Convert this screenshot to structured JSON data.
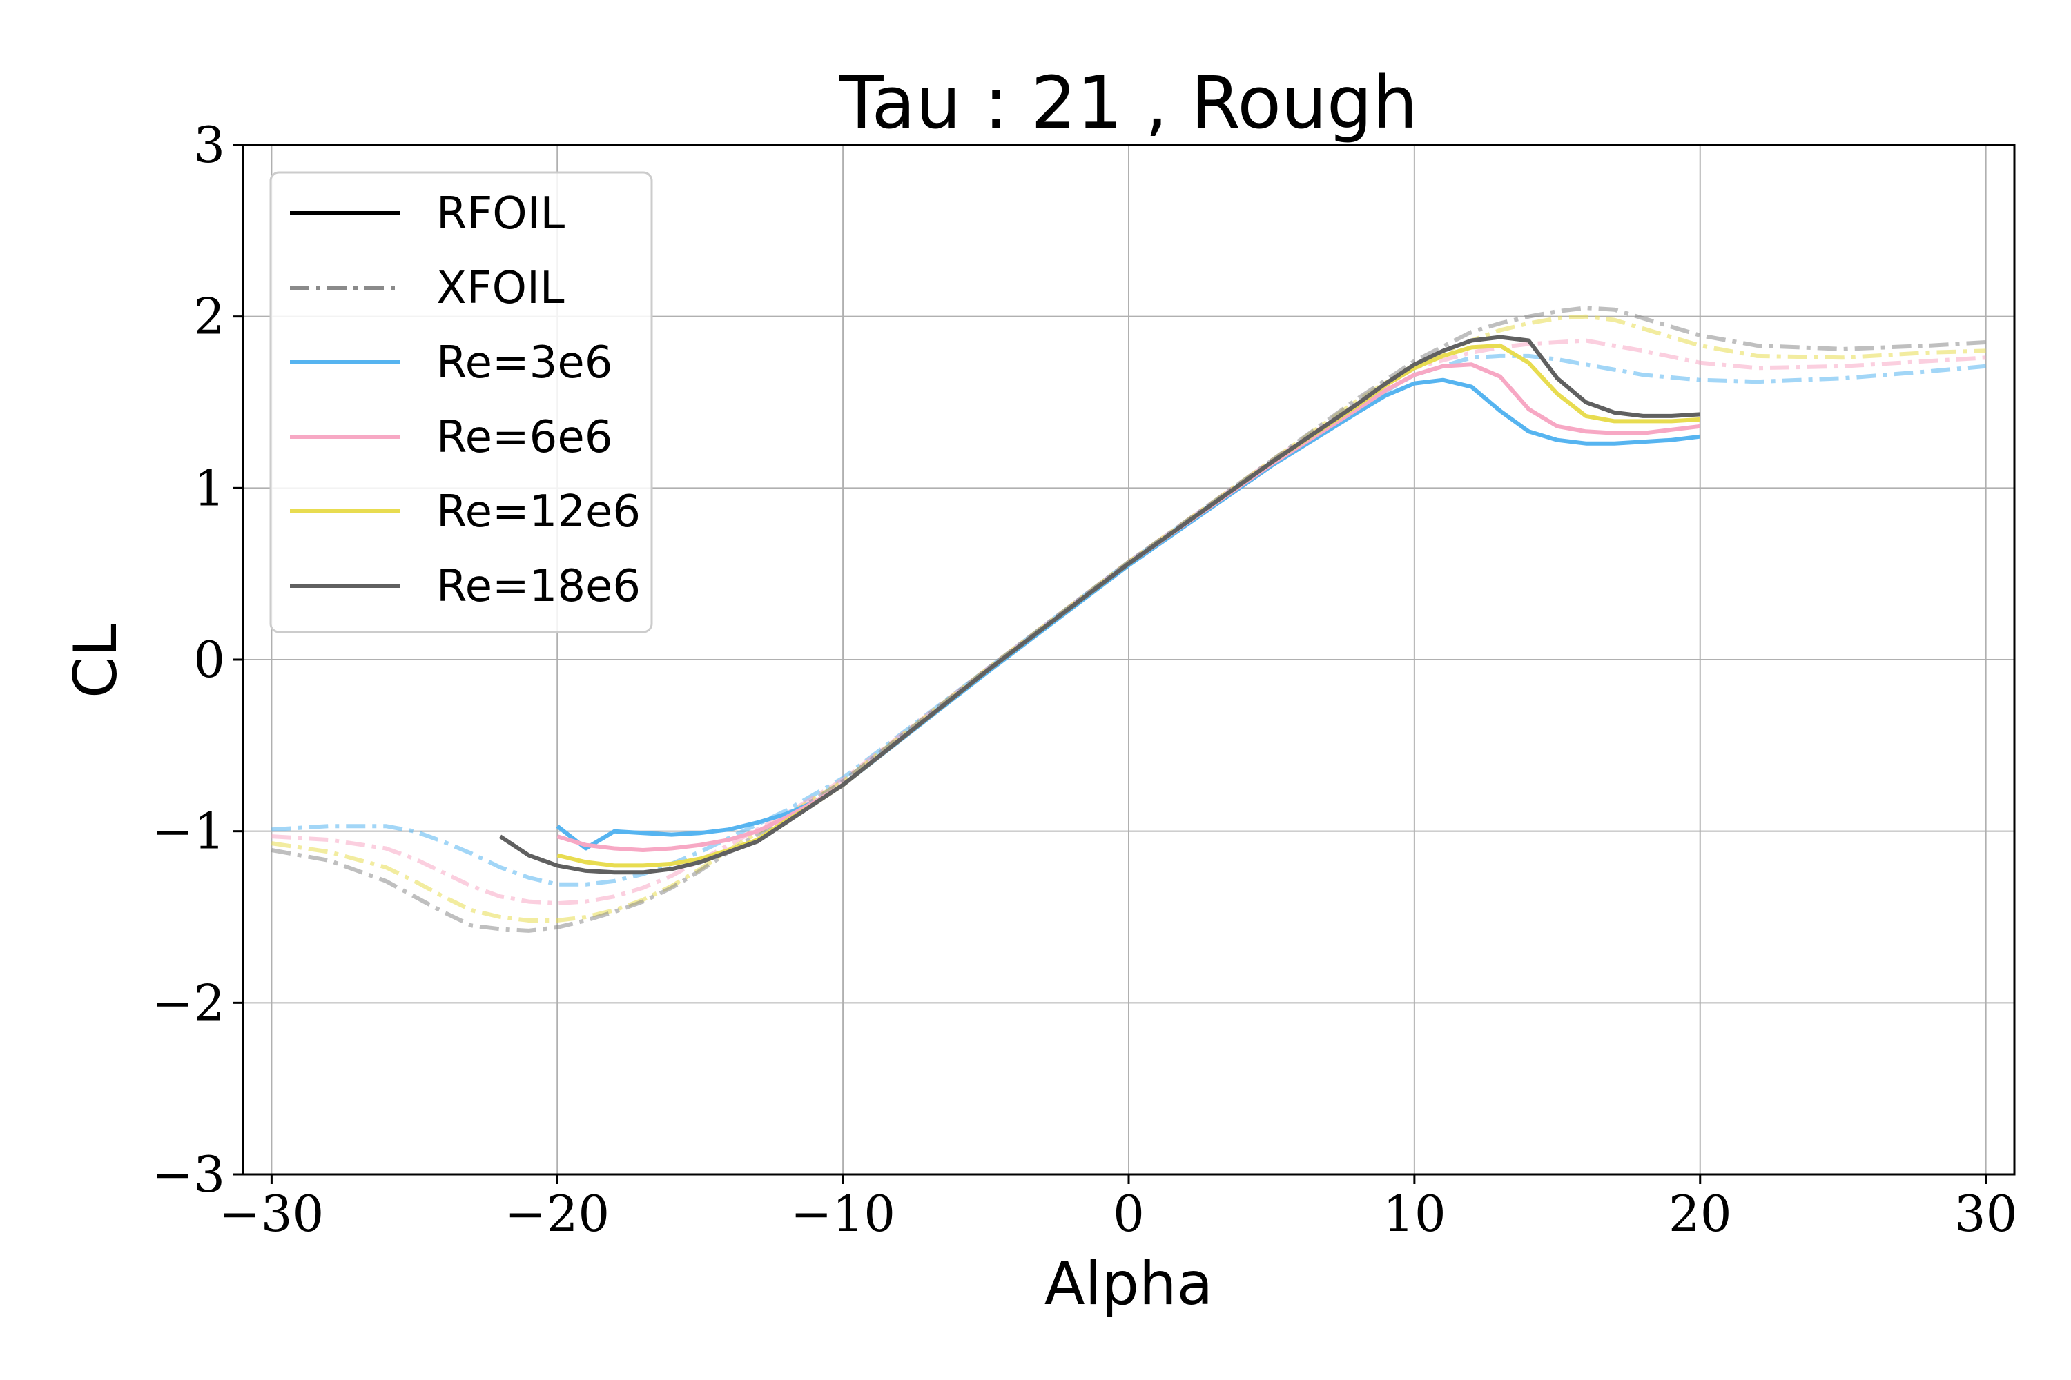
{
  "chart_data": {
    "type": "line",
    "title": "Tau : 21 , Rough",
    "xlabel": "Alpha",
    "ylabel": "CL",
    "xlim": [
      -31,
      31
    ],
    "ylim": [
      -3,
      3
    ],
    "xticks": [
      -30,
      -20,
      -10,
      0,
      10,
      20,
      30
    ],
    "yticks": [
      -3,
      -2,
      -1,
      0,
      1,
      2,
      3
    ],
    "xtick_labels": [
      "−30",
      "−20",
      "−10",
      "0",
      "10",
      "20",
      "30"
    ],
    "ytick_labels": [
      "−3",
      "−2",
      "−1",
      "0",
      "1",
      "2",
      "3"
    ],
    "grid": true,
    "legend_position": "top-left",
    "legend": [
      {
        "label": "RFOIL",
        "style": "solid",
        "color": "#000000"
      },
      {
        "label": "XFOIL",
        "style": "dashdot",
        "color": "#8a8a8a"
      },
      {
        "label": "Re=3e6",
        "style": "solid",
        "color": "#56b4f0"
      },
      {
        "label": "Re=6e6",
        "style": "solid",
        "color": "#f7a8c4"
      },
      {
        "label": "Re=12e6",
        "style": "solid",
        "color": "#e8dc50"
      },
      {
        "label": "Re=18e6",
        "style": "solid",
        "color": "#606060"
      }
    ],
    "series": [
      {
        "name": "Re=3e6",
        "solver": "XFOIL",
        "color": "#56b4f0",
        "style": "dashdot",
        "x": [
          -30,
          -28,
          -26,
          -25,
          -24,
          -23,
          -22,
          -21,
          -20,
          -19,
          -18,
          -17,
          -16,
          -15,
          -14,
          -13,
          -12,
          -10,
          -5,
          0,
          5,
          8,
          10,
          12,
          13,
          14,
          15,
          16,
          18,
          20,
          22,
          25,
          28,
          30
        ],
        "y": [
          -0.99,
          -0.97,
          -0.97,
          -1.0,
          -1.06,
          -1.13,
          -1.21,
          -1.27,
          -1.31,
          -1.31,
          -1.29,
          -1.25,
          -1.19,
          -1.12,
          -1.04,
          -0.96,
          -0.88,
          -0.69,
          -0.06,
          0.57,
          1.15,
          1.47,
          1.66,
          1.76,
          1.77,
          1.77,
          1.75,
          1.72,
          1.66,
          1.63,
          1.62,
          1.64,
          1.68,
          1.71
        ]
      },
      {
        "name": "Re=6e6",
        "solver": "XFOIL",
        "color": "#f7a8c4",
        "style": "dashdot",
        "x": [
          -30,
          -28,
          -26,
          -25,
          -24,
          -23,
          -22,
          -21,
          -20,
          -19,
          -18,
          -17,
          -16,
          -15,
          -14,
          -13,
          -12,
          -10,
          -5,
          0,
          5,
          8,
          10,
          12,
          13,
          14,
          15,
          16,
          18,
          20,
          22,
          25,
          28,
          30
        ],
        "y": [
          -1.03,
          -1.05,
          -1.1,
          -1.16,
          -1.24,
          -1.32,
          -1.38,
          -1.41,
          -1.42,
          -1.41,
          -1.38,
          -1.33,
          -1.26,
          -1.17,
          -1.08,
          -0.99,
          -0.9,
          -0.7,
          -0.06,
          0.57,
          1.16,
          1.49,
          1.7,
          1.79,
          1.82,
          1.84,
          1.85,
          1.86,
          1.8,
          1.73,
          1.7,
          1.71,
          1.74,
          1.76
        ]
      },
      {
        "name": "Re=12e6",
        "solver": "XFOIL",
        "color": "#e8dc50",
        "style": "dashdot",
        "x": [
          -30,
          -28,
          -26,
          -25,
          -24,
          -23,
          -22,
          -21,
          -20,
          -19,
          -18,
          -17,
          -16,
          -15,
          -14,
          -13,
          -12,
          -10,
          -5,
          0,
          5,
          8,
          10,
          12,
          13,
          14,
          15,
          16,
          17,
          18,
          20,
          22,
          25,
          28,
          30
        ],
        "y": [
          -1.07,
          -1.12,
          -1.21,
          -1.29,
          -1.38,
          -1.46,
          -1.5,
          -1.52,
          -1.52,
          -1.5,
          -1.46,
          -1.4,
          -1.32,
          -1.22,
          -1.11,
          -1.01,
          -0.91,
          -0.71,
          -0.06,
          0.57,
          1.16,
          1.51,
          1.72,
          1.86,
          1.92,
          1.96,
          1.99,
          2.0,
          1.98,
          1.93,
          1.83,
          1.77,
          1.76,
          1.79,
          1.8
        ]
      },
      {
        "name": "Re=18e6",
        "solver": "XFOIL",
        "color": "#8a8a8a",
        "style": "dashdot",
        "x": [
          -30,
          -28,
          -26,
          -25,
          -24,
          -23,
          -22,
          -21,
          -20,
          -19,
          -18,
          -17,
          -16,
          -15,
          -14,
          -13,
          -12,
          -10,
          -5,
          0,
          5,
          8,
          10,
          12,
          13,
          14,
          15,
          16,
          17,
          18,
          20,
          22,
          25,
          28,
          30
        ],
        "y": [
          -1.11,
          -1.17,
          -1.29,
          -1.38,
          -1.47,
          -1.55,
          -1.57,
          -1.58,
          -1.56,
          -1.52,
          -1.47,
          -1.41,
          -1.33,
          -1.23,
          -1.12,
          -1.02,
          -0.92,
          -0.71,
          -0.06,
          0.57,
          1.16,
          1.52,
          1.74,
          1.91,
          1.96,
          2.0,
          2.03,
          2.05,
          2.04,
          1.99,
          1.89,
          1.83,
          1.81,
          1.83,
          1.85
        ]
      },
      {
        "name": "Re=3e6",
        "solver": "RFOIL",
        "color": "#56b4f0",
        "style": "solid",
        "x": [
          -20,
          -19,
          -18,
          -17,
          -16,
          -15,
          -14,
          -13,
          -12,
          -11,
          -10,
          -5,
          0,
          5,
          8,
          9,
          10,
          11,
          12,
          13,
          14,
          15,
          16,
          17,
          18,
          19,
          20
        ],
        "y": [
          -0.97,
          -1.1,
          -1.0,
          -1.01,
          -1.02,
          -1.01,
          -0.99,
          -0.95,
          -0.9,
          -0.83,
          -0.73,
          -0.08,
          0.55,
          1.13,
          1.44,
          1.54,
          1.61,
          1.63,
          1.59,
          1.45,
          1.33,
          1.28,
          1.26,
          1.26,
          1.27,
          1.28,
          1.3
        ]
      },
      {
        "name": "Re=6e6",
        "solver": "RFOIL",
        "color": "#f7a8c4",
        "style": "solid",
        "x": [
          -20,
          -19,
          -18,
          -17,
          -16,
          -15,
          -14,
          -13,
          -12,
          -11,
          -10,
          -5,
          0,
          5,
          8,
          9,
          10,
          11,
          12,
          13,
          14,
          15,
          16,
          17,
          18,
          19,
          20
        ],
        "y": [
          -1.03,
          -1.08,
          -1.1,
          -1.11,
          -1.1,
          -1.08,
          -1.05,
          -1.0,
          -0.92,
          -0.83,
          -0.73,
          -0.07,
          0.56,
          1.14,
          1.46,
          1.57,
          1.66,
          1.71,
          1.72,
          1.65,
          1.46,
          1.36,
          1.33,
          1.32,
          1.32,
          1.34,
          1.36
        ]
      },
      {
        "name": "Re=12e6",
        "solver": "RFOIL",
        "color": "#e8dc50",
        "style": "solid",
        "x": [
          -20,
          -19,
          -18,
          -17,
          -16,
          -15,
          -14,
          -13,
          -12,
          -11,
          -10,
          -5,
          0,
          5,
          8,
          9,
          10,
          11,
          12,
          13,
          14,
          15,
          16,
          17,
          18,
          19,
          20
        ],
        "y": [
          -1.14,
          -1.18,
          -1.2,
          -1.2,
          -1.19,
          -1.16,
          -1.11,
          -1.05,
          -0.94,
          -0.84,
          -0.73,
          -0.07,
          0.56,
          1.15,
          1.48,
          1.6,
          1.7,
          1.77,
          1.82,
          1.83,
          1.73,
          1.55,
          1.42,
          1.39,
          1.39,
          1.39,
          1.4
        ]
      },
      {
        "name": "Re=18e6",
        "solver": "RFOIL",
        "color": "#606060",
        "style": "solid",
        "x": [
          -22,
          -21,
          -20,
          -19,
          -18,
          -17,
          -16,
          -15,
          -14,
          -13,
          -12,
          -11,
          -10,
          -5,
          0,
          5,
          8,
          9,
          10,
          11,
          12,
          13,
          14,
          15,
          16,
          17,
          18,
          19,
          20
        ],
        "y": [
          -1.03,
          -1.14,
          -1.2,
          -1.23,
          -1.24,
          -1.24,
          -1.22,
          -1.18,
          -1.12,
          -1.06,
          -0.95,
          -0.84,
          -0.73,
          -0.07,
          0.56,
          1.15,
          1.49,
          1.61,
          1.72,
          1.8,
          1.86,
          1.88,
          1.86,
          1.64,
          1.5,
          1.44,
          1.42,
          1.42,
          1.43
        ]
      }
    ]
  }
}
